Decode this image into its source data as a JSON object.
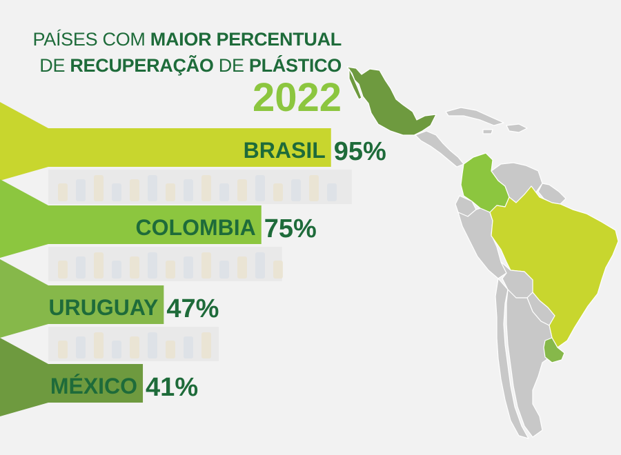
{
  "title": {
    "line1_a": "PAÍSES COM ",
    "line1_b": "MAIOR PERCENTUAL",
    "line2_a": "DE ",
    "line2_b": "RECUPERAÇÃO",
    "line2_c": " DE ",
    "line2_d": "PLÁSTICO",
    "year": "2022"
  },
  "chart_data": {
    "type": "bar",
    "categories": [
      "BRASIL",
      "COLOMBIA",
      "URUGUAY",
      "MÉXICO"
    ],
    "values": [
      95,
      75,
      47,
      41
    ],
    "value_labels": [
      "95%",
      "75%",
      "47%",
      "41%"
    ],
    "unit": "%",
    "orientation": "horizontal",
    "ylim": [
      0,
      100
    ],
    "colors": [
      "#c8d62e",
      "#8cc63f",
      "#86b84a",
      "#6e9a3f"
    ]
  },
  "map": {
    "highlighted": [
      {
        "country": "Brasil",
        "color": "#c8d62e"
      },
      {
        "country": "Colombia",
        "color": "#8cc63f"
      },
      {
        "country": "Uruguay",
        "color": "#86b84a"
      },
      {
        "country": "México",
        "color": "#6e9a3f"
      }
    ],
    "other_color": "#c8c8c8"
  }
}
